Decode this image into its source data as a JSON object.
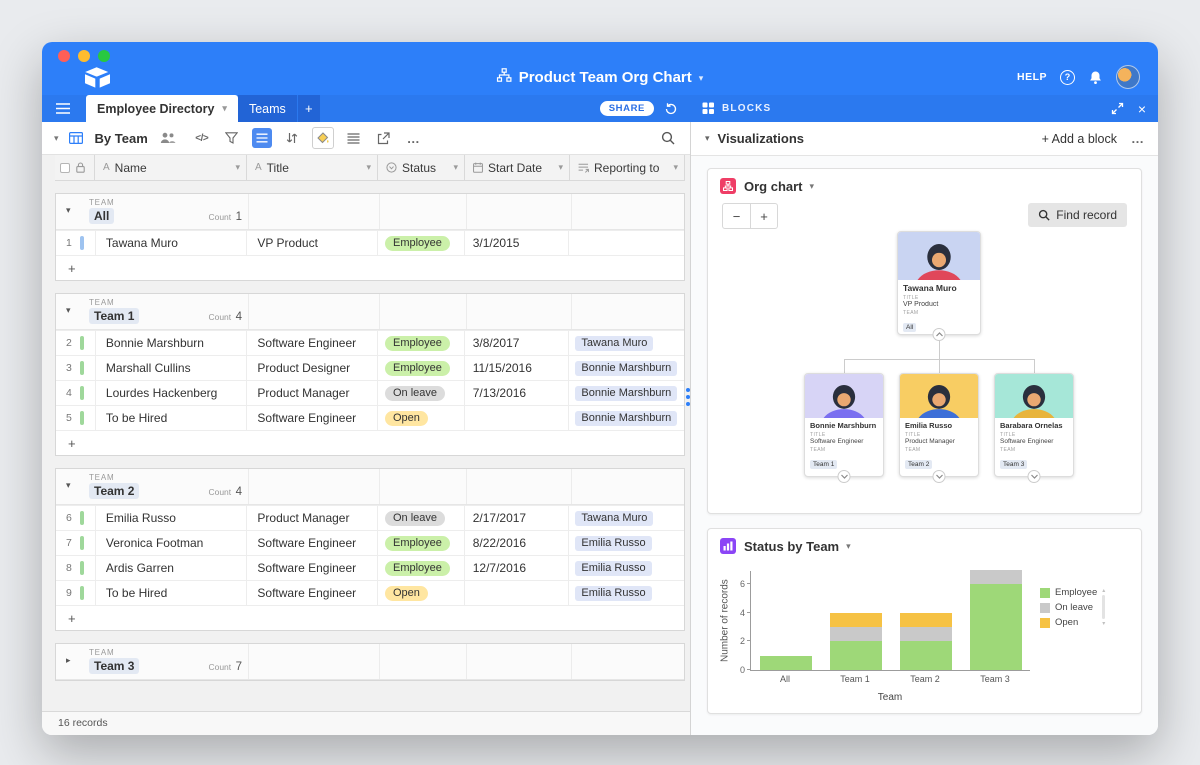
{
  "icons": {
    "caret_down": "▾",
    "caret_right": "▸",
    "more": "…",
    "plus": "+",
    "minus": "−",
    "close": "×",
    "help_q": "?",
    "hide_fields": "</>",
    "text_field": "A",
    "tri_up": "▴",
    "tri_down": "▾"
  },
  "topbar": {
    "title": "Product Team Org Chart",
    "help_label": "HELP"
  },
  "tabbar": {
    "tabs": [
      {
        "label": "Employee Directory",
        "active": true
      },
      {
        "label": "Teams",
        "active": false
      }
    ],
    "share_label": "SHARE",
    "blocks_label": "BLOCKS"
  },
  "toolbar": {
    "view_name": "By Team"
  },
  "grid": {
    "columns": [
      "Name",
      "Title",
      "Status",
      "Start Date",
      "Reporting to"
    ],
    "group_field_label": "TEAM",
    "count_label": "Count",
    "footer_label": "16 records",
    "status_colors": {
      "Employee": "#cbf0a9",
      "On leave": "#dcdcdc",
      "Open": "#ffe6a1"
    },
    "link_pill_bg": "#e0e6f7",
    "team_chip_bg": "#e3e9f3",
    "groups": [
      {
        "name": "All",
        "count": 1,
        "collapsed": false,
        "rows": [
          {
            "num": "1",
            "name": "Tawana Muro",
            "title": "VP Product",
            "status": "Employee",
            "date": "3/1/2015",
            "reporting": "",
            "bar": "#9ec3f0"
          }
        ]
      },
      {
        "name": "Team 1",
        "count": 4,
        "collapsed": false,
        "rows": [
          {
            "num": "2",
            "name": "Bonnie Marshburn",
            "title": "Software Engineer",
            "status": "Employee",
            "date": "3/8/2017",
            "reporting": "Tawana Muro",
            "bar": "#9fd89b"
          },
          {
            "num": "3",
            "name": "Marshall Cullins",
            "title": "Product Designer",
            "status": "Employee",
            "date": "11/15/2016",
            "reporting": "Bonnie Marshburn",
            "bar": "#9fd89b"
          },
          {
            "num": "4",
            "name": "Lourdes Hackenberg",
            "title": "Product Manager",
            "status": "On leave",
            "date": "7/13/2016",
            "reporting": "Bonnie Marshburn",
            "bar": "#9fd89b"
          },
          {
            "num": "5",
            "name": "To be Hired",
            "title": "Software Engineer",
            "status": "Open",
            "date": "",
            "reporting": "Bonnie Marshburn",
            "bar": "#9fd89b"
          }
        ]
      },
      {
        "name": "Team 2",
        "count": 4,
        "collapsed": false,
        "rows": [
          {
            "num": "6",
            "name": "Emilia Russo",
            "title": "Product Manager",
            "status": "On leave",
            "date": "2/17/2017",
            "reporting": "Tawana Muro",
            "bar": "#9fd89b"
          },
          {
            "num": "7",
            "name": "Veronica Footman",
            "title": "Software Engineer",
            "status": "Employee",
            "date": "8/22/2016",
            "reporting": "Emilia Russo",
            "bar": "#9fd89b"
          },
          {
            "num": "8",
            "name": "Ardis Garren",
            "title": "Software Engineer",
            "status": "Employee",
            "date": "12/7/2016",
            "reporting": "Emilia Russo",
            "bar": "#9fd89b"
          },
          {
            "num": "9",
            "name": "To be Hired",
            "title": "Software Engineer",
            "status": "Open",
            "date": "",
            "reporting": "Emilia Russo",
            "bar": "#9fd89b"
          }
        ]
      },
      {
        "name": "Team 3",
        "count": 7,
        "collapsed": true,
        "rows": []
      }
    ]
  },
  "blocks": {
    "panel_title": "Visualizations",
    "add_block_label": "+ Add a block",
    "org_block": {
      "title": "Org chart",
      "icon_color": "#ef3e66",
      "find_record_label": "Find record",
      "field_labels": {
        "title": "TITLE",
        "team": "TEAM"
      },
      "team_chip_bg": "#e3e9f3",
      "root": {
        "name": "Tawana Muro",
        "title": "VP Product",
        "team": "All",
        "avatar_bg": "#c9d4f2",
        "shirt": "#e0475a"
      },
      "children": [
        {
          "name": "Bonnie Marshburn",
          "title": "Software Engineer",
          "team": "Team 1",
          "avatar_bg": "#d7d4f6",
          "shirt": "#7a6ff0"
        },
        {
          "name": "Emilia Russo",
          "title": "Product Manager",
          "team": "Team 2",
          "avatar_bg": "#f8cd63",
          "shirt": "#3d6fd8"
        },
        {
          "name": "Barabara Ornelas",
          "title": "Software Engineer",
          "team": "Team 3",
          "avatar_bg": "#a6e7d8",
          "shirt": "#e8b43c"
        }
      ]
    },
    "status_block": {
      "title": "Status by Team",
      "icon_color": "#8b45f6"
    }
  },
  "chart_data": {
    "type": "bar",
    "stacked": true,
    "title": "Status by Team",
    "categories": [
      "All",
      "Team 1",
      "Team 2",
      "Team 3"
    ],
    "series": [
      {
        "name": "Employee",
        "color": "#9ed878",
        "values": [
          1,
          2,
          2,
          6
        ]
      },
      {
        "name": "On leave",
        "color": "#c9c9c9",
        "values": [
          0,
          1,
          1,
          1
        ]
      },
      {
        "name": "Open",
        "color": "#f6c244",
        "values": [
          0,
          1,
          1,
          0
        ]
      }
    ],
    "xlabel": "Team",
    "ylabel": "Number of records",
    "yticks": [
      0,
      2,
      4,
      6
    ],
    "ylim": [
      0,
      7
    ],
    "legend_position": "right",
    "grid": false
  }
}
